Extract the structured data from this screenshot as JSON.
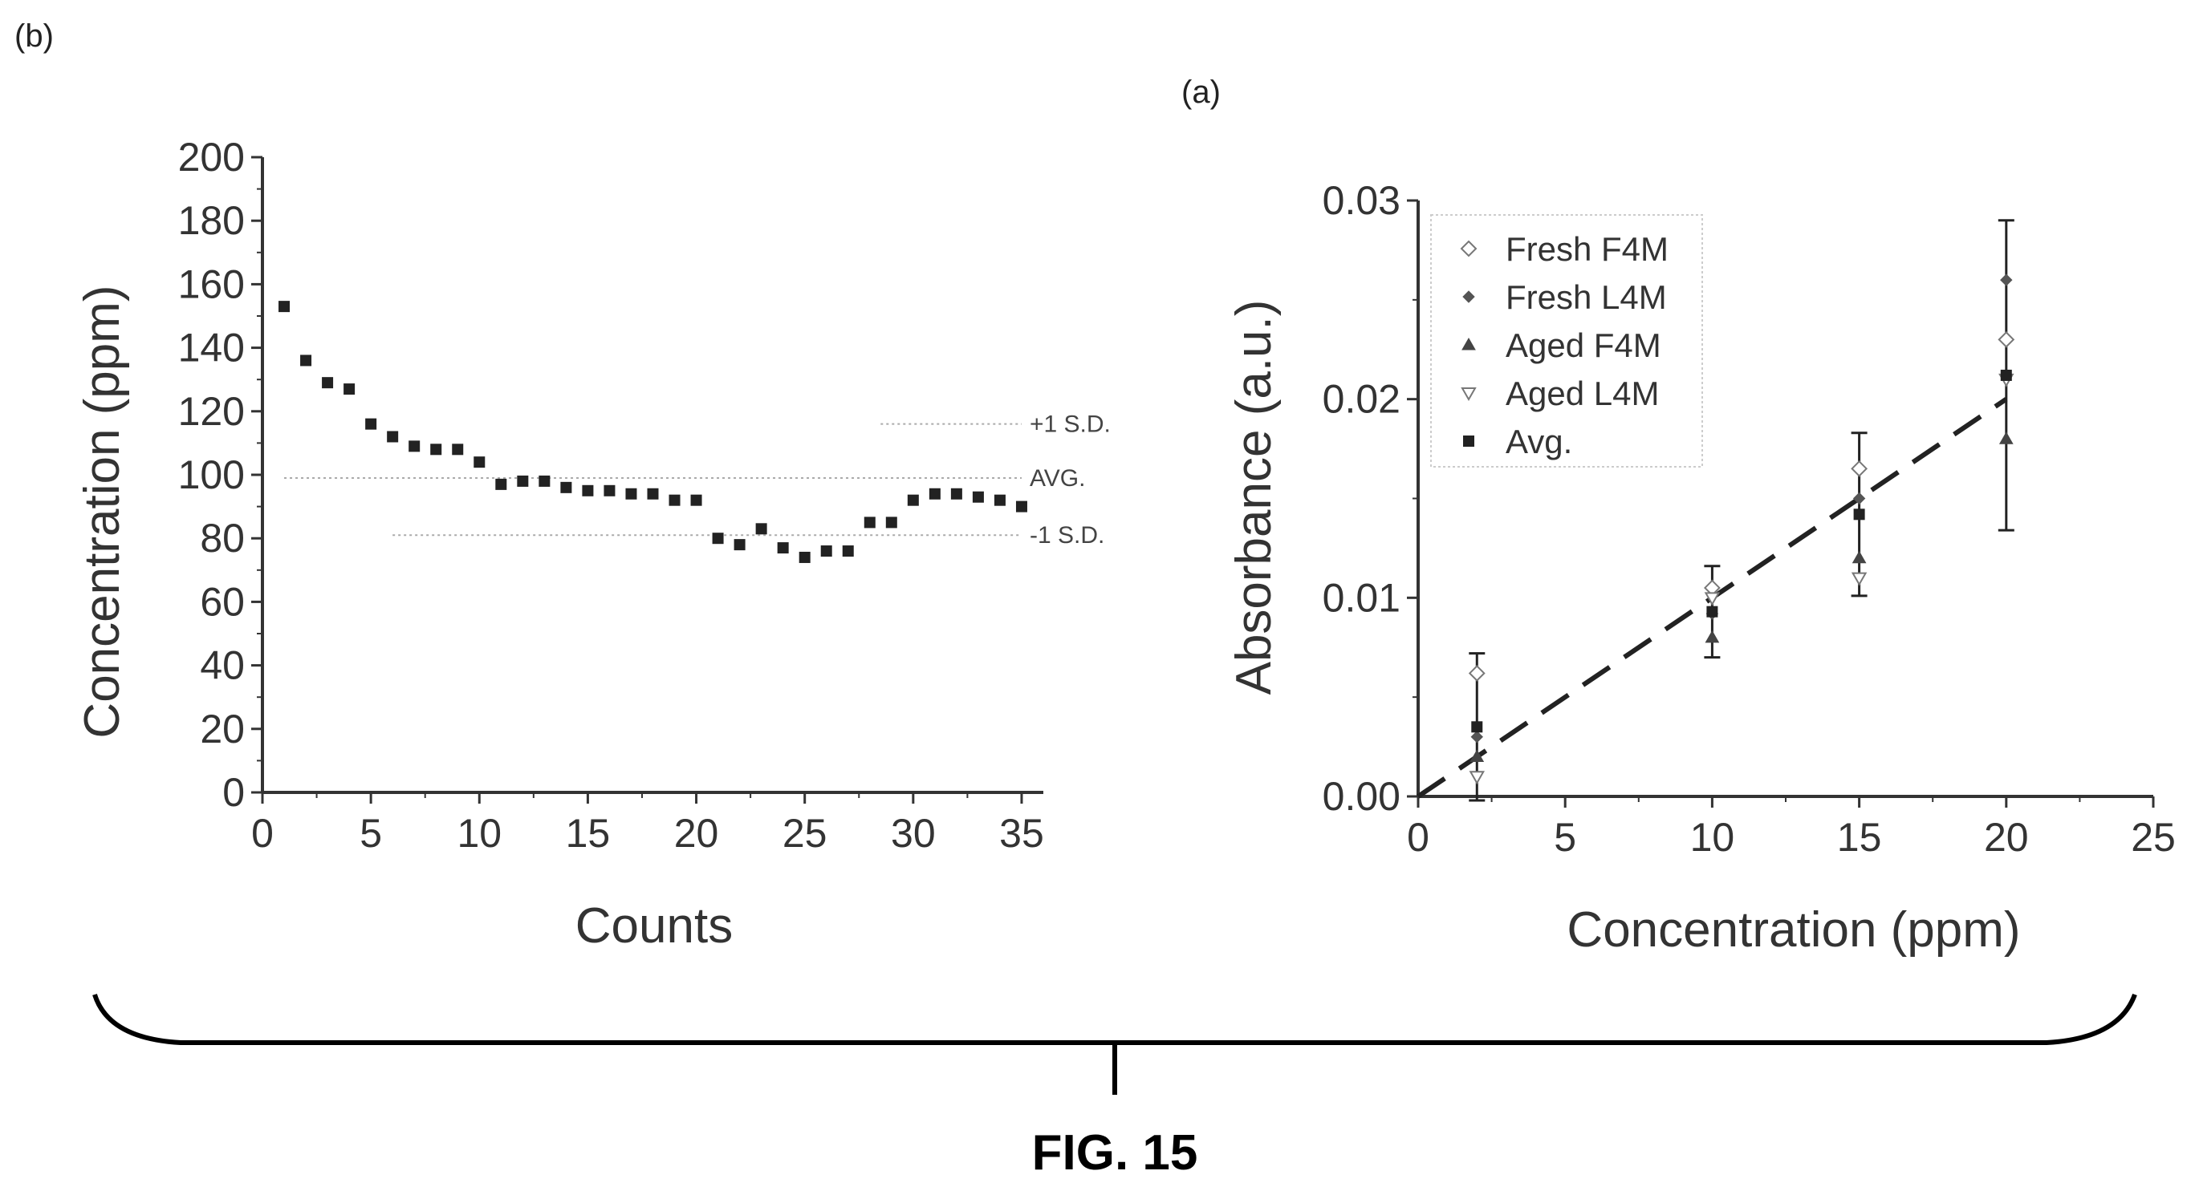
{
  "figure_title": "FIG. 15",
  "chart_data": [
    {
      "panel_label": "(b)",
      "type": "scatter",
      "xlabel": "Counts",
      "ylabel": "Concentration (ppm)",
      "xlim": [
        0,
        36
      ],
      "ylim": [
        0,
        200
      ],
      "xticks": [
        "0",
        "5",
        "10",
        "15",
        "20",
        "25",
        "30",
        "35"
      ],
      "yticks": [
        "0",
        "20",
        "40",
        "60",
        "80",
        "100",
        "120",
        "140",
        "160",
        "180",
        "200"
      ],
      "x": [
        1,
        2,
        3,
        4,
        5,
        6,
        7,
        8,
        9,
        10,
        11,
        12,
        13,
        14,
        15,
        16,
        17,
        18,
        19,
        20,
        21,
        22,
        23,
        24,
        25,
        26,
        27,
        28,
        29,
        30,
        31,
        32,
        33,
        34,
        35
      ],
      "y": [
        153,
        136,
        129,
        127,
        116,
        112,
        109,
        108,
        108,
        104,
        97,
        98,
        98,
        96,
        95,
        95,
        94,
        94,
        92,
        92,
        80,
        78,
        83,
        77,
        74,
        76,
        76,
        85,
        85,
        92,
        94,
        94,
        93,
        92,
        90
      ],
      "reference_lines": [
        {
          "label": "+1 S.D.",
          "y": 116,
          "x_start": 28.5,
          "x_end": 35
        },
        {
          "label": "AVG.",
          "y": 99,
          "x_start": 1,
          "x_end": 35
        },
        {
          "label": "-1 S.D.",
          "y": 81,
          "x_start": 6,
          "x_end": 35
        }
      ]
    },
    {
      "panel_label": "(a)",
      "type": "scatter",
      "xlabel": "Concentration (ppm)",
      "ylabel": "Absorbance (a.u.)",
      "xlim": [
        0,
        25
      ],
      "ylim": [
        0,
        0.03
      ],
      "xticks": [
        "0",
        "5",
        "10",
        "15",
        "20",
        "25"
      ],
      "yticks": [
        "0.00",
        "0.01",
        "0.02",
        "0.03"
      ],
      "legend_position": "top-left",
      "series": [
        {
          "name": "Fresh F4M",
          "marker": "diamond",
          "x": [
            2,
            10,
            15,
            20
          ],
          "y": [
            0.0062,
            0.0105,
            0.0165,
            0.023
          ]
        },
        {
          "name": "Fresh L4M",
          "marker": "diamond-small",
          "x": [
            2,
            10,
            15,
            20
          ],
          "y": [
            0.003,
            0.0092,
            0.015,
            0.026
          ]
        },
        {
          "name": "Aged F4M",
          "marker": "triangle-up",
          "x": [
            2,
            10,
            15,
            20
          ],
          "y": [
            0.002,
            0.008,
            0.012,
            0.018
          ]
        },
        {
          "name": "Aged L4M",
          "marker": "triangle-down",
          "x": [
            2,
            10,
            15,
            20
          ],
          "y": [
            0.001,
            0.01,
            0.011,
            0.021
          ]
        },
        {
          "name": "Avg.",
          "marker": "square",
          "x": [
            2,
            10,
            15,
            20
          ],
          "y": [
            0.0035,
            0.0093,
            0.0142,
            0.0212
          ],
          "yerr": [
            0.0037,
            0.0023,
            0.0041,
            0.0078
          ]
        }
      ],
      "fit_line": {
        "style": "dashed",
        "x": [
          0,
          20
        ],
        "y": [
          0.0,
          0.02
        ]
      }
    }
  ]
}
